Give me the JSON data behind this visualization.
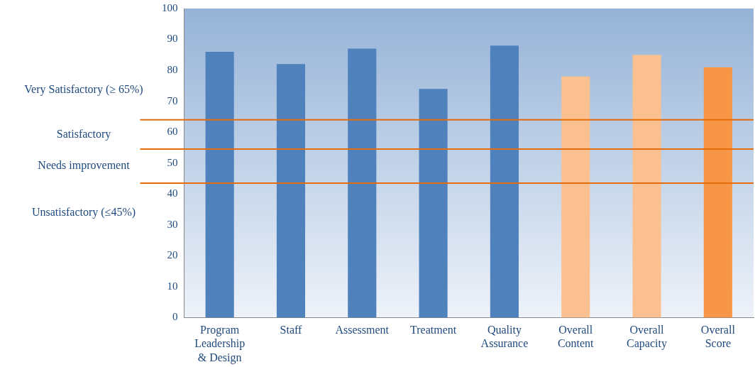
{
  "chart_data": {
    "type": "bar",
    "categories": [
      "Program Leadership & Design",
      "Staff",
      "Assessment",
      "Treatment",
      "Quality Assurance",
      "Overall Content",
      "Overall Capacity",
      "Overall Score"
    ],
    "values": [
      86,
      82,
      87,
      74,
      88,
      78,
      85,
      81
    ],
    "colors": [
      "#4f81bd",
      "#4f81bd",
      "#4f81bd",
      "#4f81bd",
      "#4f81bd",
      "#fac090",
      "#fac090",
      "#f79646"
    ],
    "ylim": [
      0,
      100
    ],
    "yticks": [
      0,
      10,
      20,
      30,
      40,
      50,
      60,
      70,
      80,
      90,
      100
    ],
    "grid": false,
    "legend": false,
    "ref_lines": [
      {
        "axis": "y",
        "value": 64,
        "color": "#e46c0a"
      },
      {
        "axis": "y",
        "value": 54.5,
        "color": "#e46c0a"
      },
      {
        "axis": "y",
        "value": 43.5,
        "color": "#e46c0a"
      }
    ],
    "annotations": [
      "Very Satisfactory (≥ 65%)",
      "Satisfactory",
      "Needs improvement",
      "Unsatisfactory (≤45%)"
    ]
  }
}
